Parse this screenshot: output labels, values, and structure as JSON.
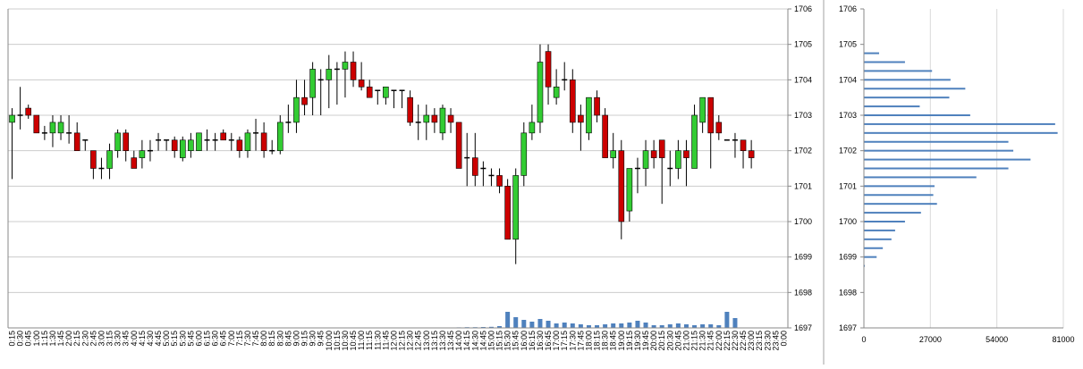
{
  "chart_data": [
    {
      "type": "candlestick",
      "xlabel": "",
      "ylabel": "",
      "ylim": [
        1697,
        1706
      ],
      "y_ticks": [
        "1697",
        "1698",
        "1699",
        "1700",
        "1701",
        "1702",
        "1703",
        "1704",
        "1705",
        "1706"
      ],
      "x_ticks": [
        "0:15",
        "0:30",
        "0:45",
        "1:00",
        "1:15",
        "1:30",
        "1:45",
        "2:00",
        "2:15",
        "2:30",
        "2:45",
        "3:00",
        "3:15",
        "3:30",
        "3:45",
        "4:00",
        "4:15",
        "4:30",
        "4:45",
        "5:00",
        "5:15",
        "5:30",
        "5:45",
        "6:00",
        "6:15",
        "6:30",
        "6:45",
        "7:00",
        "7:15",
        "7:30",
        "7:45",
        "8:00",
        "8:15",
        "8:30",
        "8:45",
        "9:00",
        "9:15",
        "9:30",
        "9:45",
        "10:00",
        "10:15",
        "10:30",
        "10:45",
        "11:00",
        "11:15",
        "11:30",
        "11:45",
        "12:00",
        "12:15",
        "12:30",
        "12:45",
        "13:00",
        "13:15",
        "13:30",
        "13:45",
        "14:00",
        "14:15",
        "14:30",
        "14:45",
        "15:00",
        "15:15",
        "15:30",
        "15:45",
        "16:00",
        "16:15",
        "16:30",
        "16:45",
        "17:00",
        "17:15",
        "17:30",
        "17:45",
        "18:00",
        "18:15",
        "18:30",
        "18:45",
        "19:00",
        "19:15",
        "19:30",
        "19:45",
        "20:00",
        "20:15",
        "20:30",
        "20:45",
        "21:00",
        "21:15",
        "21:30",
        "21:45",
        "22:00",
        "22:15",
        "22:30",
        "22:45",
        "23:00",
        "23:15",
        "23:30",
        "23:45",
        "0:00"
      ],
      "candles": [
        {
          "i": 0,
          "o": 1702.8,
          "h": 1703.2,
          "l": 1701.2,
          "c": 1703.0
        },
        {
          "i": 1,
          "o": 1703.0,
          "h": 1703.8,
          "l": 1702.6,
          "c": 1703.0
        },
        {
          "i": 2,
          "o": 1703.2,
          "h": 1703.3,
          "l": 1702.9,
          "c": 1703.0
        },
        {
          "i": 3,
          "o": 1703.0,
          "h": 1703.0,
          "l": 1702.5,
          "c": 1702.5
        },
        {
          "i": 4,
          "o": 1702.5,
          "h": 1702.7,
          "l": 1702.3,
          "c": 1702.5
        },
        {
          "i": 5,
          "o": 1702.5,
          "h": 1703.0,
          "l": 1702.1,
          "c": 1702.8
        },
        {
          "i": 6,
          "o": 1702.5,
          "h": 1703.0,
          "l": 1702.3,
          "c": 1702.8
        },
        {
          "i": 7,
          "o": 1702.5,
          "h": 1703.0,
          "l": 1702.2,
          "c": 1702.5
        },
        {
          "i": 8,
          "o": 1702.5,
          "h": 1702.8,
          "l": 1702.0,
          "c": 1702.0
        },
        {
          "i": 9,
          "o": 1702.3,
          "h": 1702.3,
          "l": 1702.0,
          "c": 1702.3
        },
        {
          "i": 10,
          "o": 1702.0,
          "h": 1702.0,
          "l": 1701.2,
          "c": 1701.5
        },
        {
          "i": 11,
          "o": 1701.5,
          "h": 1701.8,
          "l": 1701.2,
          "c": 1701.5
        },
        {
          "i": 12,
          "o": 1701.5,
          "h": 1702.2,
          "l": 1701.2,
          "c": 1702.0
        },
        {
          "i": 13,
          "o": 1702.0,
          "h": 1702.6,
          "l": 1701.8,
          "c": 1702.5
        },
        {
          "i": 14,
          "o": 1702.5,
          "h": 1702.6,
          "l": 1701.7,
          "c": 1702.0
        },
        {
          "i": 15,
          "o": 1701.8,
          "h": 1702.0,
          "l": 1701.5,
          "c": 1701.5
        },
        {
          "i": 16,
          "o": 1701.8,
          "h": 1702.3,
          "l": 1701.5,
          "c": 1702.0
        },
        {
          "i": 17,
          "o": 1702.0,
          "h": 1702.3,
          "l": 1701.7,
          "c": 1702.0
        },
        {
          "i": 18,
          "o": 1702.3,
          "h": 1702.5,
          "l": 1702.0,
          "c": 1702.3
        },
        {
          "i": 19,
          "o": 1702.3,
          "h": 1702.3,
          "l": 1702.0,
          "c": 1702.3
        },
        {
          "i": 20,
          "o": 1702.3,
          "h": 1702.4,
          "l": 1701.8,
          "c": 1702.0
        },
        {
          "i": 21,
          "o": 1701.8,
          "h": 1702.4,
          "l": 1701.7,
          "c": 1702.3
        },
        {
          "i": 22,
          "o": 1702.0,
          "h": 1702.5,
          "l": 1701.8,
          "c": 1702.3
        },
        {
          "i": 23,
          "o": 1702.0,
          "h": 1702.5,
          "l": 1702.0,
          "c": 1702.5
        },
        {
          "i": 24,
          "o": 1702.3,
          "h": 1702.6,
          "l": 1702.0,
          "c": 1702.3
        },
        {
          "i": 25,
          "o": 1702.3,
          "h": 1702.5,
          "l": 1702.0,
          "c": 1702.3
        },
        {
          "i": 26,
          "o": 1702.5,
          "h": 1702.6,
          "l": 1702.3,
          "c": 1702.3
        },
        {
          "i": 27,
          "o": 1702.3,
          "h": 1702.5,
          "l": 1702.0,
          "c": 1702.3
        },
        {
          "i": 28,
          "o": 1702.3,
          "h": 1702.4,
          "l": 1701.8,
          "c": 1702.0
        },
        {
          "i": 29,
          "o": 1702.0,
          "h": 1702.6,
          "l": 1701.8,
          "c": 1702.5
        },
        {
          "i": 30,
          "o": 1702.5,
          "h": 1702.9,
          "l": 1702.0,
          "c": 1702.5
        },
        {
          "i": 31,
          "o": 1702.5,
          "h": 1702.8,
          "l": 1701.8,
          "c": 1702.0
        },
        {
          "i": 32,
          "o": 1702.0,
          "h": 1702.3,
          "l": 1701.9,
          "c": 1702.0
        },
        {
          "i": 33,
          "o": 1702.0,
          "h": 1703.0,
          "l": 1701.9,
          "c": 1702.8
        },
        {
          "i": 34,
          "o": 1702.8,
          "h": 1703.3,
          "l": 1702.5,
          "c": 1702.8
        },
        {
          "i": 35,
          "o": 1702.8,
          "h": 1704.0,
          "l": 1702.5,
          "c": 1703.5
        },
        {
          "i": 36,
          "o": 1703.5,
          "h": 1704.0,
          "l": 1703.0,
          "c": 1703.3
        },
        {
          "i": 37,
          "o": 1703.5,
          "h": 1704.5,
          "l": 1703.0,
          "c": 1704.3
        },
        {
          "i": 38,
          "o": 1704.0,
          "h": 1704.3,
          "l": 1703.0,
          "c": 1704.0
        },
        {
          "i": 39,
          "o": 1704.0,
          "h": 1704.7,
          "l": 1703.2,
          "c": 1704.3
        },
        {
          "i": 40,
          "o": 1704.3,
          "h": 1704.5,
          "l": 1703.3,
          "c": 1704.3
        },
        {
          "i": 41,
          "o": 1704.3,
          "h": 1704.8,
          "l": 1703.5,
          "c": 1704.5
        },
        {
          "i": 42,
          "o": 1704.5,
          "h": 1704.8,
          "l": 1703.8,
          "c": 1704.0
        },
        {
          "i": 43,
          "o": 1704.0,
          "h": 1704.5,
          "l": 1703.7,
          "c": 1703.8
        },
        {
          "i": 44,
          "o": 1703.8,
          "h": 1704.0,
          "l": 1703.5,
          "c": 1703.5
        },
        {
          "i": 45,
          "o": 1703.7,
          "h": 1703.7,
          "l": 1703.3,
          "c": 1703.7
        },
        {
          "i": 46,
          "o": 1703.5,
          "h": 1703.8,
          "l": 1703.3,
          "c": 1703.8
        },
        {
          "i": 47,
          "o": 1703.7,
          "h": 1703.7,
          "l": 1703.2,
          "c": 1703.7
        },
        {
          "i": 48,
          "o": 1703.7,
          "h": 1703.7,
          "l": 1703.2,
          "c": 1703.7
        },
        {
          "i": 49,
          "o": 1703.5,
          "h": 1703.7,
          "l": 1702.7,
          "c": 1702.8
        },
        {
          "i": 50,
          "o": 1702.8,
          "h": 1703.3,
          "l": 1702.3,
          "c": 1702.8
        },
        {
          "i": 51,
          "o": 1702.8,
          "h": 1703.3,
          "l": 1702.3,
          "c": 1703.0
        },
        {
          "i": 52,
          "o": 1703.0,
          "h": 1703.2,
          "l": 1702.5,
          "c": 1702.8
        },
        {
          "i": 53,
          "o": 1702.5,
          "h": 1703.3,
          "l": 1702.3,
          "c": 1703.2
        },
        {
          "i": 54,
          "o": 1703.0,
          "h": 1703.2,
          "l": 1702.5,
          "c": 1702.8
        },
        {
          "i": 55,
          "o": 1702.8,
          "h": 1702.8,
          "l": 1701.5,
          "c": 1701.5
        },
        {
          "i": 56,
          "o": 1701.8,
          "h": 1702.5,
          "l": 1701.0,
          "c": 1701.8
        },
        {
          "i": 57,
          "o": 1701.8,
          "h": 1702.5,
          "l": 1701.0,
          "c": 1701.3
        },
        {
          "i": 58,
          "o": 1701.5,
          "h": 1701.7,
          "l": 1701.0,
          "c": 1701.5
        },
        {
          "i": 59,
          "o": 1701.3,
          "h": 1701.5,
          "l": 1701.0,
          "c": 1701.3
        },
        {
          "i": 60,
          "o": 1701.3,
          "h": 1701.5,
          "l": 1700.8,
          "c": 1701.0
        },
        {
          "i": 61,
          "o": 1701.0,
          "h": 1701.2,
          "l": 1699.5,
          "c": 1699.5
        },
        {
          "i": 62,
          "o": 1699.5,
          "h": 1701.5,
          "l": 1698.8,
          "c": 1701.3
        },
        {
          "i": 63,
          "o": 1701.3,
          "h": 1702.8,
          "l": 1701.0,
          "c": 1702.5
        },
        {
          "i": 64,
          "o": 1702.5,
          "h": 1703.3,
          "l": 1702.3,
          "c": 1702.8
        },
        {
          "i": 65,
          "o": 1702.8,
          "h": 1705.0,
          "l": 1702.5,
          "c": 1704.5
        },
        {
          "i": 66,
          "o": 1704.8,
          "h": 1705.0,
          "l": 1703.3,
          "c": 1703.8
        },
        {
          "i": 67,
          "o": 1703.5,
          "h": 1704.3,
          "l": 1703.3,
          "c": 1703.8
        },
        {
          "i": 68,
          "o": 1704.0,
          "h": 1704.5,
          "l": 1703.7,
          "c": 1704.0
        },
        {
          "i": 69,
          "o": 1704.0,
          "h": 1704.3,
          "l": 1702.5,
          "c": 1702.8
        },
        {
          "i": 70,
          "o": 1703.0,
          "h": 1703.3,
          "l": 1702.0,
          "c": 1702.8
        },
        {
          "i": 71,
          "o": 1702.5,
          "h": 1703.5,
          "l": 1702.3,
          "c": 1703.5
        },
        {
          "i": 72,
          "o": 1703.5,
          "h": 1703.7,
          "l": 1702.8,
          "c": 1703.0
        },
        {
          "i": 73,
          "o": 1703.0,
          "h": 1703.2,
          "l": 1701.8,
          "c": 1701.8
        },
        {
          "i": 74,
          "o": 1701.8,
          "h": 1702.5,
          "l": 1701.5,
          "c": 1702.0
        },
        {
          "i": 75,
          "o": 1702.0,
          "h": 1702.3,
          "l": 1699.5,
          "c": 1700.0
        },
        {
          "i": 76,
          "o": 1700.3,
          "h": 1701.5,
          "l": 1700.0,
          "c": 1701.5
        },
        {
          "i": 77,
          "o": 1701.5,
          "h": 1701.8,
          "l": 1700.8,
          "c": 1701.5
        },
        {
          "i": 78,
          "o": 1701.5,
          "h": 1702.3,
          "l": 1701.0,
          "c": 1702.0
        },
        {
          "i": 79,
          "o": 1702.0,
          "h": 1702.3,
          "l": 1701.5,
          "c": 1701.8
        },
        {
          "i": 80,
          "o": 1702.3,
          "h": 1702.3,
          "l": 1700.5,
          "c": 1701.8
        },
        {
          "i": 81,
          "o": 1701.5,
          "h": 1702.0,
          "l": 1701.0,
          "c": 1701.5
        },
        {
          "i": 82,
          "o": 1701.5,
          "h": 1702.3,
          "l": 1701.2,
          "c": 1702.0
        },
        {
          "i": 83,
          "o": 1702.0,
          "h": 1702.3,
          "l": 1701.0,
          "c": 1701.8
        },
        {
          "i": 84,
          "o": 1701.5,
          "h": 1703.3,
          "l": 1701.5,
          "c": 1703.0
        },
        {
          "i": 85,
          "o": 1702.8,
          "h": 1703.5,
          "l": 1702.5,
          "c": 1703.5
        },
        {
          "i": 86,
          "o": 1703.5,
          "h": 1703.5,
          "l": 1701.5,
          "c": 1702.5
        },
        {
          "i": 87,
          "o": 1702.8,
          "h": 1703.0,
          "l": 1702.3,
          "c": 1702.5
        },
        {
          "i": 88,
          "o": 1702.3,
          "h": 1702.3,
          "l": 1702.3,
          "c": 1702.3
        },
        {
          "i": 89,
          "o": 1702.3,
          "h": 1702.5,
          "l": 1701.8,
          "c": 1702.3
        },
        {
          "i": 90,
          "o": 1702.3,
          "h": 1702.3,
          "l": 1701.5,
          "c": 1702.0
        },
        {
          "i": 91,
          "o": 1702.0,
          "h": 1702.3,
          "l": 1701.5,
          "c": 1701.8
        }
      ],
      "volume": [
        {
          "i": 55,
          "v": 0.6
        },
        {
          "i": 56,
          "v": 0.8
        },
        {
          "i": 57,
          "v": 0.8
        },
        {
          "i": 58,
          "v": 1.0
        },
        {
          "i": 59,
          "v": 1.2
        },
        {
          "i": 60,
          "v": 2.0
        },
        {
          "i": 61,
          "v": 18.0
        },
        {
          "i": 62,
          "v": 12.0
        },
        {
          "i": 63,
          "v": 9.0
        },
        {
          "i": 64,
          "v": 7.0
        },
        {
          "i": 65,
          "v": 10.0
        },
        {
          "i": 66,
          "v": 8.0
        },
        {
          "i": 67,
          "v": 5.0
        },
        {
          "i": 68,
          "v": 6.0
        },
        {
          "i": 69,
          "v": 5.0
        },
        {
          "i": 70,
          "v": 4.0
        },
        {
          "i": 71,
          "v": 3.0
        },
        {
          "i": 72,
          "v": 3.0
        },
        {
          "i": 73,
          "v": 4.0
        },
        {
          "i": 74,
          "v": 5.0
        },
        {
          "i": 75,
          "v": 5.0
        },
        {
          "i": 76,
          "v": 6.0
        },
        {
          "i": 77,
          "v": 8.0
        },
        {
          "i": 78,
          "v": 6.0
        },
        {
          "i": 79,
          "v": 3.0
        },
        {
          "i": 80,
          "v": 3.0
        },
        {
          "i": 81,
          "v": 4.0
        },
        {
          "i": 82,
          "v": 5.0
        },
        {
          "i": 83,
          "v": 4.0
        },
        {
          "i": 84,
          "v": 3.0
        },
        {
          "i": 85,
          "v": 4.0
        },
        {
          "i": 86,
          "v": 4.0
        },
        {
          "i": 87,
          "v": 3.0
        },
        {
          "i": 88,
          "v": 18.0
        },
        {
          "i": 89,
          "v": 11.0
        }
      ],
      "colors": {
        "up": "#33cc33",
        "down": "#cc0000",
        "wick": "#000000",
        "volume": "#4f81bd",
        "grid": "#cccccc"
      }
    },
    {
      "type": "bar",
      "orientation": "horizontal",
      "xlabel": "",
      "ylabel": "",
      "xlim": [
        0,
        81000
      ],
      "ylim": [
        1697,
        1706
      ],
      "x_ticks": [
        "0",
        "27000",
        "54000",
        "81000"
      ],
      "y_ticks": [
        "1697",
        "1698",
        "1699",
        "1700",
        "1701",
        "1702",
        "1703",
        "1704",
        "1705",
        "1706"
      ],
      "price_levels": [
        1698.75,
        1699.0,
        1699.25,
        1699.5,
        1699.75,
        1700.0,
        1700.25,
        1700.5,
        1700.75,
        1701.0,
        1701.25,
        1701.5,
        1701.75,
        1702.0,
        1702.25,
        1702.5,
        1702.75,
        1703.0,
        1703.25,
        1703.5,
        1703.75,
        1704.0,
        1704.25,
        1704.5,
        1704.75
      ],
      "values": [
        200,
        5000,
        7500,
        11000,
        12500,
        16500,
        23000,
        29500,
        28000,
        28500,
        45500,
        58500,
        67500,
        60500,
        58500,
        78500,
        77500,
        43000,
        22500,
        34500,
        41000,
        35000,
        27500,
        16500,
        6000
      ],
      "colors": {
        "bar": "#4f81bd",
        "grid": "#d9d9d9"
      }
    }
  ]
}
